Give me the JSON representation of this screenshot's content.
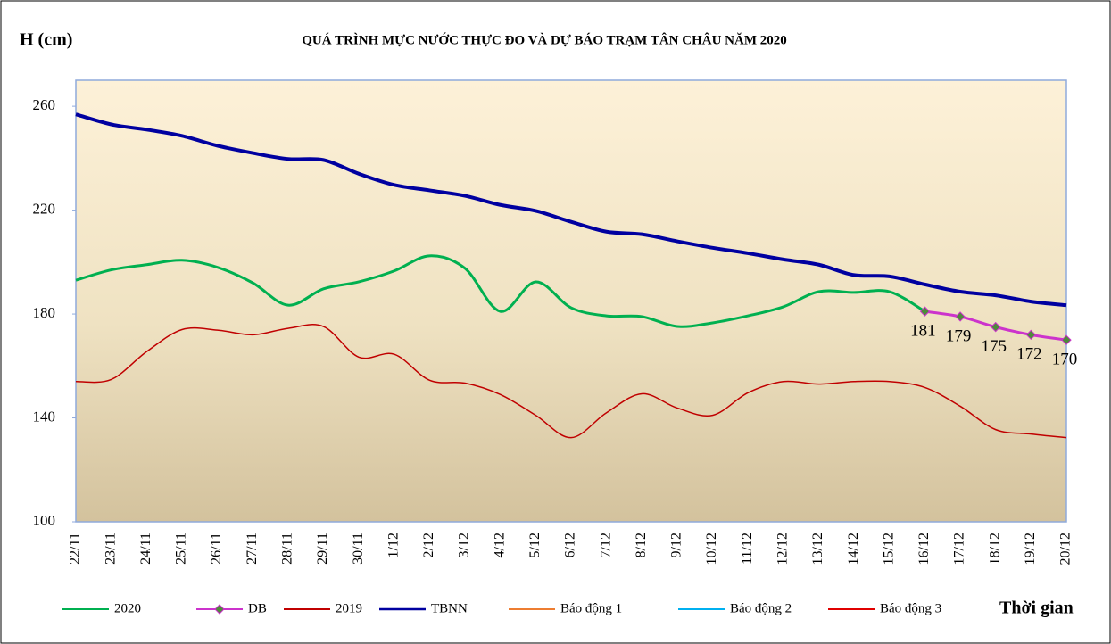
{
  "chart_data": {
    "type": "line",
    "title": "QUÁ TRÌNH MỰC NƯỚC THỰC ĐO VÀ DỰ BÁO TRẠM TÂN CHÂU NĂM 2020",
    "y_label": "H (cm)",
    "x_label": "Thời gian",
    "categories": [
      "22/11",
      "23/11",
      "24/11",
      "25/11",
      "26/11",
      "27/11",
      "28/11",
      "29/11",
      "30/11",
      "1/12",
      "2/12",
      "3/12",
      "4/12",
      "5/12",
      "6/12",
      "7/12",
      "8/12",
      "9/12",
      "10/12",
      "11/12",
      "12/12",
      "13/12",
      "14/12",
      "15/12",
      "16/12",
      "17/12",
      "18/12",
      "19/12",
      "20/12"
    ],
    "ylim": [
      100,
      270
    ],
    "yticks": [
      100,
      140,
      180,
      220,
      260
    ],
    "series": [
      {
        "name": "2020",
        "color": "#00b050",
        "values": [
          193,
          197,
          199,
          200.7,
          198,
          192,
          183.4,
          189.7,
          192.4,
          196.6,
          202.4,
          197.6,
          181,
          192.4,
          182.4,
          179.3,
          179,
          175.2,
          176.6,
          179.3,
          182.8,
          188.6,
          188.3,
          188.6,
          181,
          null,
          null,
          null,
          null
        ]
      },
      {
        "name": "DB",
        "color": "#cc33cc",
        "marker": "diamond",
        "marker_color": "#4e8a3a",
        "values": [
          null,
          null,
          null,
          null,
          null,
          null,
          null,
          null,
          null,
          null,
          null,
          null,
          null,
          null,
          null,
          null,
          null,
          null,
          null,
          null,
          null,
          null,
          null,
          null,
          181,
          179,
          175,
          172,
          170
        ]
      },
      {
        "name": "2019",
        "color": "#c00000",
        "values": [
          154,
          154.8,
          165.5,
          174,
          173.8,
          172,
          174.5,
          175.2,
          163.4,
          164.5,
          154.5,
          153.4,
          149,
          141,
          132.4,
          142,
          149.3,
          143.8,
          141,
          149.7,
          154,
          153,
          154,
          154,
          151.7,
          144.5,
          135.5,
          133.8,
          132.4
        ]
      },
      {
        "name": "TBNN",
        "color": "#0000a0",
        "values": [
          256.9,
          253,
          251,
          248.6,
          244.8,
          242,
          239.7,
          239.3,
          234,
          229.7,
          227.6,
          225.5,
          222,
          219.7,
          215.5,
          211.7,
          210.7,
          208,
          205.5,
          203.4,
          201,
          199,
          195,
          194.5,
          191.4,
          188.6,
          187.2,
          184.8,
          183.4
        ]
      },
      {
        "name": "Báo động 1",
        "color": "#ed7d31",
        "values": [
          null,
          null,
          null,
          null,
          null,
          null,
          null,
          null,
          null,
          null,
          null,
          null,
          null,
          null,
          null,
          null,
          null,
          null,
          null,
          null,
          null,
          null,
          null,
          null,
          null,
          null,
          null,
          null,
          null
        ]
      },
      {
        "name": "Báo động 2",
        "color": "#00b0f0",
        "values": [
          null,
          null,
          null,
          null,
          null,
          null,
          null,
          null,
          null,
          null,
          null,
          null,
          null,
          null,
          null,
          null,
          null,
          null,
          null,
          null,
          null,
          null,
          null,
          null,
          null,
          null,
          null,
          null,
          null
        ]
      },
      {
        "name": "Báo động 3",
        "color": "#e00000",
        "values": [
          null,
          null,
          null,
          null,
          null,
          null,
          null,
          null,
          null,
          null,
          null,
          null,
          null,
          null,
          null,
          null,
          null,
          null,
          null,
          null,
          null,
          null,
          null,
          null,
          null,
          null,
          null,
          null,
          null
        ]
      }
    ]
  }
}
